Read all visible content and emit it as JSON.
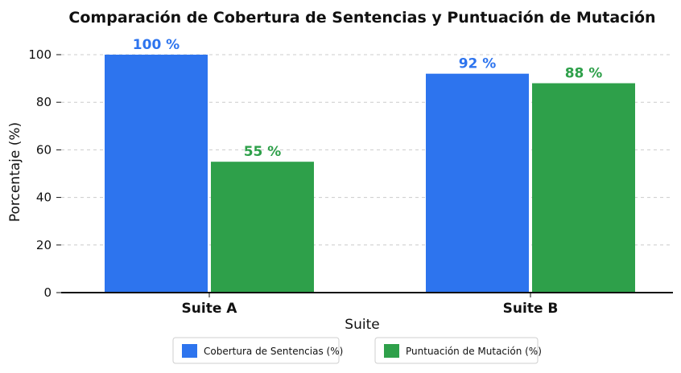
{
  "chart_data": {
    "type": "bar",
    "title": "Comparación de Cobertura de Sentencias y Puntuación de Mutación",
    "xlabel": "Suite",
    "ylabel": "Porcentaje (%)",
    "categories": [
      "Suite A",
      "Suite B"
    ],
    "ylim": [
      0,
      100
    ],
    "yticks": [
      0,
      20,
      40,
      60,
      80,
      100
    ],
    "grid": true,
    "legend_position": "bottom",
    "value_suffix": " %",
    "series": [
      {
        "name": "Cobertura de Sentencias (%)",
        "values": [
          100,
          92
        ],
        "color": "#2d74ee"
      },
      {
        "name": "Puntuación de Mutación (%)",
        "values": [
          55,
          88
        ],
        "color": "#2ea04a"
      }
    ]
  }
}
